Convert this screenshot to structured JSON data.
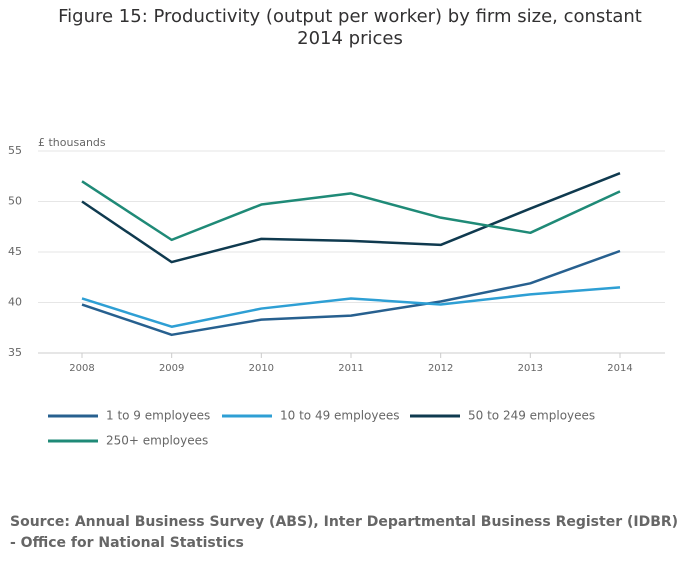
{
  "chart_data": {
    "type": "line",
    "title": "Figure 15: Productivity (output per worker) by firm size, constant 2014 prices",
    "y_label": "£ thousands",
    "source": "Source: Annual Business Survey (ABS), Inter Departmental Business Register (IDBR) - Office for National Statistics",
    "categories": [
      "2008",
      "2009",
      "2010",
      "2011",
      "2012",
      "2013",
      "2014"
    ],
    "series": [
      {
        "name": "1 to 9 employees",
        "color": "#27608f",
        "values": [
          39.8,
          36.8,
          38.3,
          38.7,
          40.1,
          41.9,
          45.1
        ]
      },
      {
        "name": "10 to 49 employees",
        "color": "#2e9fd4",
        "values": [
          40.4,
          37.6,
          39.4,
          40.4,
          39.8,
          40.8,
          41.5
        ]
      },
      {
        "name": "50 to 249 employees",
        "color": "#0f3a4f",
        "values": [
          50.0,
          44.0,
          46.3,
          46.1,
          45.7,
          49.3,
          52.8
        ]
      },
      {
        "name": "250+ employees",
        "color": "#1f8a77",
        "values": [
          52.0,
          46.2,
          49.7,
          50.8,
          48.4,
          46.9,
          51.0
        ]
      }
    ],
    "ylim": [
      35,
      55
    ],
    "yticks": [
      35,
      40,
      45,
      50,
      55
    ],
    "grid": true
  }
}
